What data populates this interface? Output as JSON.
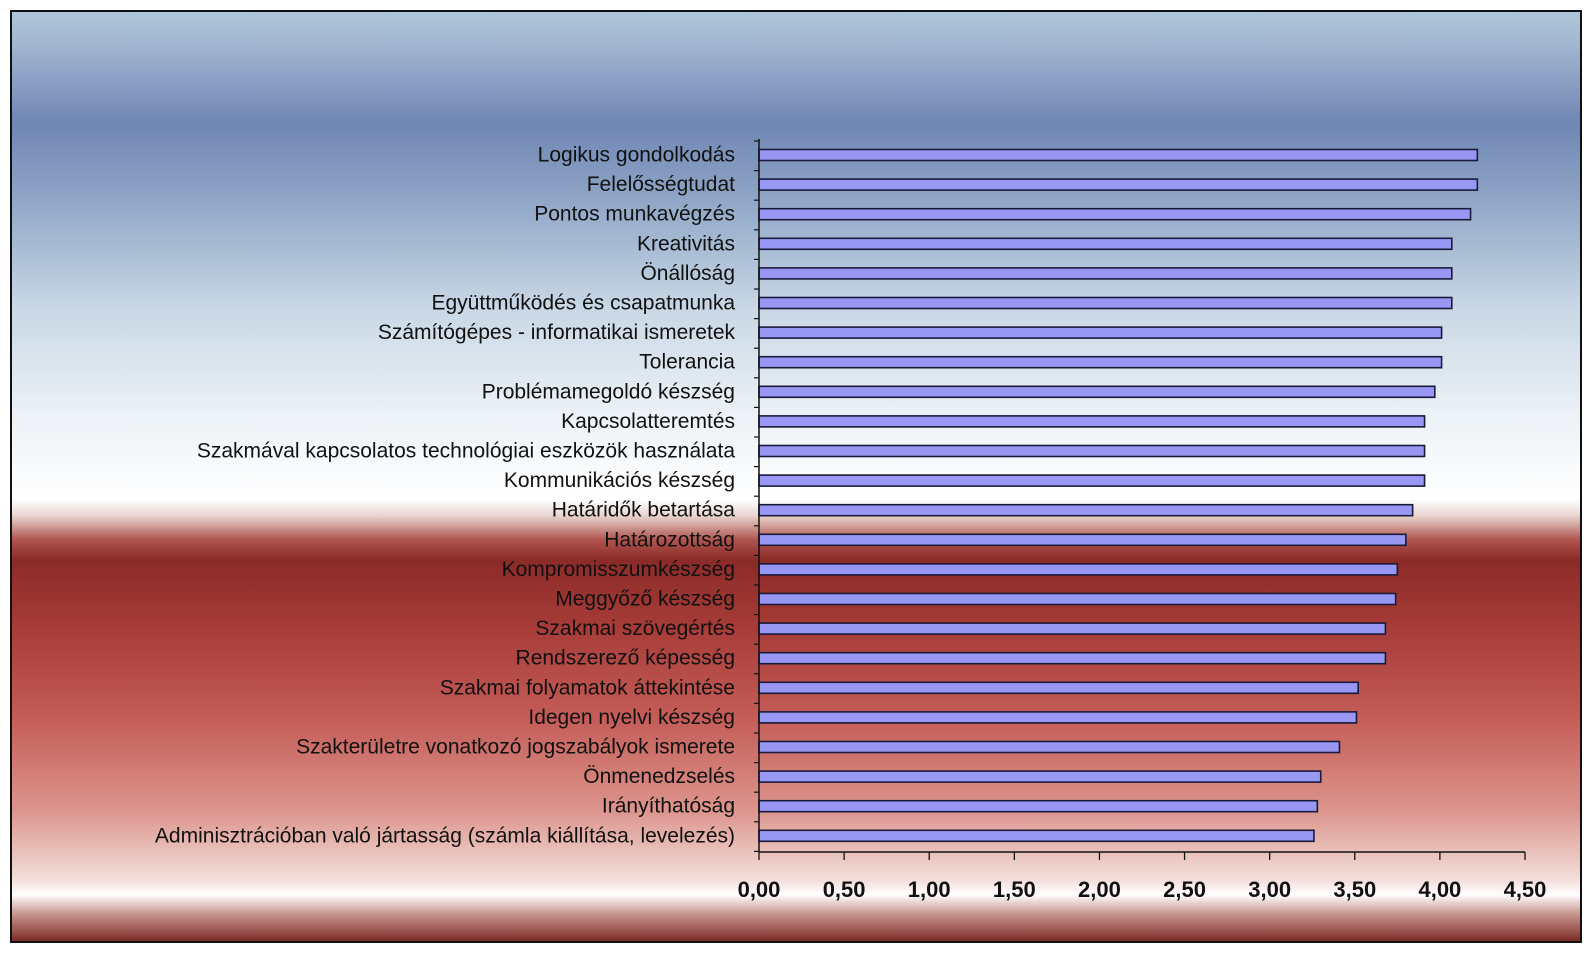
{
  "chart_data": {
    "type": "bar",
    "orientation": "horizontal",
    "title": "",
    "xlabel": "",
    "ylabel": "",
    "xlim": [
      0,
      4.5
    ],
    "x_tick_labels": [
      "0,00",
      "0,50",
      "1,00",
      "1,50",
      "2,00",
      "2,50",
      "3,00",
      "3,50",
      "4,00",
      "4,50"
    ],
    "grid": false,
    "legend": "none",
    "colors": {
      "bar_fill": "#9898f4",
      "bar_stroke": "#1a1a3a",
      "axis": "#111111",
      "text": "#111111"
    },
    "categories": [
      "Logikus gondolkodás",
      "Felelősségtudat",
      "Pontos munkavégzés",
      "Kreativitás",
      "Önállóság",
      "Együttműködés és csapatmunka",
      "Számítógépes - informatikai ismeretek",
      "Tolerancia",
      "Problémamegoldó készség",
      "Kapcsolatteremtés",
      "Szakmával kapcsolatos technológiai eszközök használata",
      "Kommunikációs készség",
      "Határidők betartása",
      "Határozottság",
      "Kompromisszumkészség",
      "Meggyőző készség",
      "Szakmai szövegértés",
      "Rendszerező képesség",
      "Szakmai folyamatok áttekintése",
      "Idegen nyelvi készség",
      "Szakterületre vonatkozó jogszabályok ismerete",
      "Önmenedzselés",
      "Irányíthatóság",
      "Adminisztrációban való jártasság (számla kiállítása, levelezés)"
    ],
    "values": [
      4.22,
      4.22,
      4.18,
      4.07,
      4.07,
      4.07,
      4.01,
      4.01,
      3.97,
      3.91,
      3.91,
      3.91,
      3.84,
      3.8,
      3.75,
      3.74,
      3.68,
      3.68,
      3.52,
      3.51,
      3.41,
      3.3,
      3.28,
      3.26
    ]
  }
}
